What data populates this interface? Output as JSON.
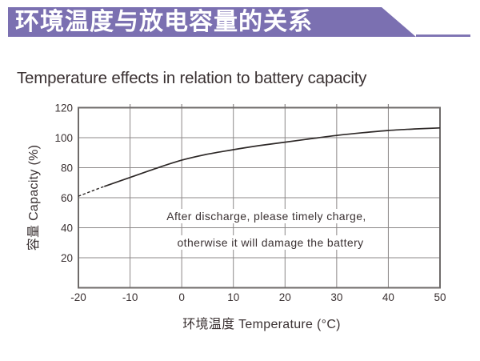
{
  "header": {
    "title": "环境温度与放电容量的关系",
    "banner_color": "#7b70b1"
  },
  "page_title": "Temperature effects in relation to battery capacity",
  "chart_data": {
    "type": "line",
    "title": "Temperature effects in relation to battery capacity",
    "xlabel": "环境温度 Temperature (°C)",
    "ylabel": "容量 Capacity (%)",
    "xlim": [
      -20,
      50
    ],
    "ylim": [
      0,
      120
    ],
    "xticks": [
      -20,
      -10,
      0,
      10,
      20,
      30,
      40,
      50
    ],
    "yticks": [
      20,
      40,
      60,
      80,
      100,
      120
    ],
    "grid": true,
    "legend": "none",
    "annotation": [
      "After discharge, please timely charge,",
      "otherwise it will damage the battery"
    ],
    "series": [
      {
        "name": "capacity-vs-temperature",
        "dashed_points": [
          [
            -20,
            61
          ],
          [
            -17.5,
            64.3
          ],
          [
            -15,
            67.5
          ]
        ],
        "solid_points": [
          [
            -15,
            67.5
          ],
          [
            -10,
            73.5
          ],
          [
            -5,
            79.5
          ],
          [
            0,
            85
          ],
          [
            5,
            89
          ],
          [
            10,
            92
          ],
          [
            15,
            94.7
          ],
          [
            20,
            97
          ],
          [
            25,
            99.3
          ],
          [
            30,
            101.5
          ],
          [
            35,
            103.3
          ],
          [
            40,
            104.8
          ],
          [
            45,
            105.8
          ],
          [
            50,
            106.5
          ]
        ]
      }
    ],
    "colors": {
      "curve": "#2e2928",
      "grid": "#8c8888",
      "frame": "#6f6b6a",
      "text": "#3a3132"
    }
  }
}
